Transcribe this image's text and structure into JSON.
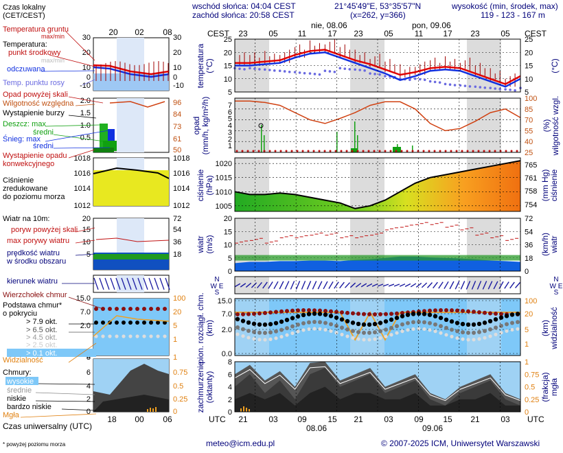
{
  "header": {
    "sunrise": "wschód słońca: 04:04 CEST",
    "sunset": "zachód słońca: 20:58 CEST",
    "coords": "21°45'49\"E, 53°35'57\"N",
    "grid": "(x=262, y=366)",
    "elev_title": "wysokość (min, środek, max)",
    "elev_values": "119 - 123 - 167 m"
  },
  "time_axis": {
    "top_label": "CEST",
    "bottom_label": "UTC",
    "dates_top": [
      "nie, 08.06",
      "pon, 09.06"
    ],
    "dates_bottom": [
      "08.06",
      "09.06"
    ],
    "cest_ticks": [
      "23",
      "05",
      "11",
      "17",
      "23",
      "05",
      "11",
      "17",
      "23",
      "05"
    ],
    "utc_ticks": [
      "21",
      "03",
      "09",
      "15",
      "21",
      "03",
      "09",
      "15",
      "21",
      "03"
    ]
  },
  "legend": {
    "timezone": "Czas lokalny\n(CET/CEST)",
    "local_ticks": [
      "20",
      "02",
      "08"
    ],
    "utc_ticks": [
      "18",
      "00",
      "06"
    ],
    "universal": "Czas uniwersalny (UTC)",
    "temp_ground": "Temperatura gruntu",
    "max_min": "max/min",
    "temperature": "Temperatura:",
    "mid_point": "punkt środkowy",
    "max_min2": "max/min",
    "perceived": "odczuwana",
    "dew_point": "Temp. punktu rosy",
    "precip_over": "Opad powyżej skali",
    "humidity": "Wilgotność względna",
    "storm": "Wystąpienie burzy",
    "rain_max": "Deszcz: max",
    "rain_avg": "średni",
    "snow_max": "Śnieg: max",
    "snow_avg": "średni",
    "convective": "Wystąpienie opadu\nkonwekcyjnego",
    "pressure": "Ciśnienie\nzredukowane\ndo poziomu morza",
    "wind10": "Wiatr na 10m:",
    "gust_over": "poryw powyżej skali",
    "gust_max": "max porywy wiatru",
    "wind_avg": "prędkość wiatru\nw środku obszaru",
    "wind_dir": "kierunek wiatru",
    "cumulonimbus": "Wierzchołek chmur",
    "cloud_base": "Podstawa chmur*\no pokryciu",
    "cov_79": "> 7.9 okt.",
    "cov_65": "> 6.5 okt.",
    "cov_45": "> 4.5 okt.",
    "cov_25": "> 2.5 okt.",
    "cov_01": "> 0.1 okt.",
    "visibility": "Widzialność",
    "clouds": "Chmury:",
    "high": "wysokie",
    "mid": "średnie",
    "low": "niskie",
    "very_low": "bardzo niskie",
    "fog": "Mgła",
    "footnote": "* powyżej poziomu morza",
    "temp_ticks": [
      "30",
      "20",
      "10",
      "0",
      "-10"
    ],
    "prec_ticks": [
      "2.0",
      "1.5",
      "1.0",
      "0.5"
    ],
    "hum_ticks": [
      "96",
      "84",
      "73",
      "61",
      "50"
    ],
    "pres_ticks": [
      "1018",
      "1016",
      "1014",
      "1012"
    ],
    "wind_ticks_ms": [
      "20",
      "15",
      "10",
      "5"
    ],
    "wind_ticks_kmh": [
      "72",
      "54",
      "36",
      "18"
    ],
    "cb_ticks_km": [
      "15.0",
      "7.0",
      "2.0"
    ],
    "cb_ticks_vis": [
      "100",
      "20",
      "5",
      "1"
    ],
    "cloud_ticks_okt": [
      "8",
      "6",
      "4",
      "2",
      "0"
    ],
    "cloud_ticks_frac": [
      "1",
      "0.75",
      "0.5",
      "0.25",
      "0"
    ]
  },
  "axis_titles": {
    "temperature": "temperatura\n(°C)",
    "temperature_r": "(°C)",
    "precip": "opad\n(mm/h, kg/m²/h)",
    "humidity_r": "(%)\nwilgotność wzgl.",
    "pressure": "ciśnienie\n(hPa)",
    "pressure_r": "(mm Hg)\nciśnienie",
    "wind": "wiatr\n(m/s)",
    "wind_r": "(km/h)\nwiatr",
    "cloudbase": "pion. rozciągł. chm.\n(km)",
    "visibility_r": "(km)\nwidzialność",
    "cloud": "zachmurzenie\n(oktanty)",
    "fog_r": "(frakcja)\nmgła",
    "compass_n": "N",
    "compass_we": "W E",
    "compass_s": "S"
  },
  "footer": {
    "email": "meteo@icm.edu.pl",
    "copyright": "© 2007-2025 ICM, Uniwersytet Warszawski"
  },
  "colors": {
    "temp": "#e00000",
    "perceived": "#1030e0",
    "dew": "#6a6ae0",
    "humidity": "#d04010",
    "rain": "#10a010",
    "snow": "#1030e0",
    "wind": "#1060e0",
    "gust": "#c01010",
    "sky": "#7ec8f8",
    "visibility": "#f0a020"
  },
  "chart_data": [
    {
      "type": "line",
      "name": "temperature",
      "x": [
        "23",
        "02",
        "05",
        "08",
        "11",
        "14",
        "17",
        "20",
        "23",
        "02",
        "05",
        "08",
        "11",
        "14",
        "17",
        "20",
        "23",
        "02",
        "05",
        "07"
      ],
      "series": [
        {
          "name": "punkt środkowy",
          "values": [
            16,
            16,
            16.5,
            17,
            19,
            20.5,
            21,
            19,
            17,
            15.5,
            13.5,
            11.5,
            12.5,
            14,
            14.5,
            14,
            12,
            10,
            8,
            11
          ]
        },
        {
          "name": "odczuwana",
          "values": [
            15,
            15,
            15.5,
            16,
            18,
            19.5,
            20,
            18,
            16,
            14,
            12,
            9.5,
            11,
            13,
            13.5,
            13,
            11,
            9,
            7,
            10
          ]
        },
        {
          "name": "Temp. punktu rosy",
          "values": [
            14,
            14,
            13.5,
            13,
            12.5,
            12,
            13,
            14,
            13.5,
            12,
            11,
            10,
            10,
            9,
            8,
            7.5,
            7,
            6.5,
            6,
            6.5
          ]
        }
      ],
      "ylim": [
        5,
        25
      ]
    },
    {
      "type": "line",
      "name": "humidity",
      "x": [
        "23",
        "02",
        "05",
        "08",
        "11",
        "14",
        "17",
        "20",
        "23",
        "02",
        "05",
        "08",
        "11",
        "14",
        "17",
        "20",
        "23",
        "02",
        "05",
        "07"
      ],
      "values": [
        96,
        96,
        94,
        90,
        80,
        70,
        65,
        72,
        80,
        90,
        95,
        95,
        85,
        65,
        55,
        58,
        68,
        80,
        85,
        73
      ],
      "ylim": [
        25,
        100
      ]
    },
    {
      "type": "area",
      "name": "pressure",
      "x": [
        "23",
        "02",
        "05",
        "08",
        "11",
        "14",
        "17",
        "20",
        "23",
        "02",
        "05",
        "08",
        "11",
        "14",
        "17",
        "20",
        "23",
        "02",
        "05",
        "07"
      ],
      "values": [
        1010,
        1009,
        1009,
        1009.5,
        1009,
        1008,
        1007,
        1006,
        1004,
        1005,
        1007,
        1010,
        1013,
        1015,
        1016,
        1017,
        1018,
        1019,
        1020,
        1021
      ],
      "ylim": [
        1003,
        1022
      ]
    },
    {
      "type": "line",
      "name": "wind",
      "x": [
        "23",
        "02",
        "05",
        "08",
        "11",
        "14",
        "17",
        "20",
        "23",
        "02",
        "05",
        "08",
        "11",
        "14",
        "17",
        "20",
        "23",
        "02",
        "05",
        "07"
      ],
      "series": [
        {
          "name": "max porywy wiatru",
          "values": [
            11,
            12,
            11,
            13,
            13,
            14,
            14,
            13,
            13,
            14,
            16,
            17,
            18,
            18,
            17,
            16,
            14,
            13,
            12,
            12
          ]
        },
        {
          "name": "prędkość wiatru",
          "values": [
            3,
            3.5,
            3.5,
            3.8,
            3.8,
            4,
            4,
            3.8,
            4.2,
            4.5,
            5,
            5.5,
            5.5,
            5.2,
            5,
            4.8,
            4.5,
            4,
            3.8,
            3.5
          ]
        }
      ],
      "ylim": [
        0,
        20
      ]
    },
    {
      "type": "line",
      "name": "visibility",
      "x": [
        "23",
        "02",
        "05",
        "08",
        "11",
        "14",
        "17",
        "20",
        "23",
        "02",
        "05",
        "08",
        "11",
        "14",
        "17",
        "20",
        "23",
        "02",
        "05",
        "07"
      ],
      "values": [
        20,
        20,
        20,
        20,
        20,
        20,
        20,
        20,
        1,
        20,
        1,
        20,
        20,
        20,
        20,
        20,
        20,
        20,
        20,
        20
      ],
      "ylim": [
        0,
        100
      ]
    }
  ]
}
